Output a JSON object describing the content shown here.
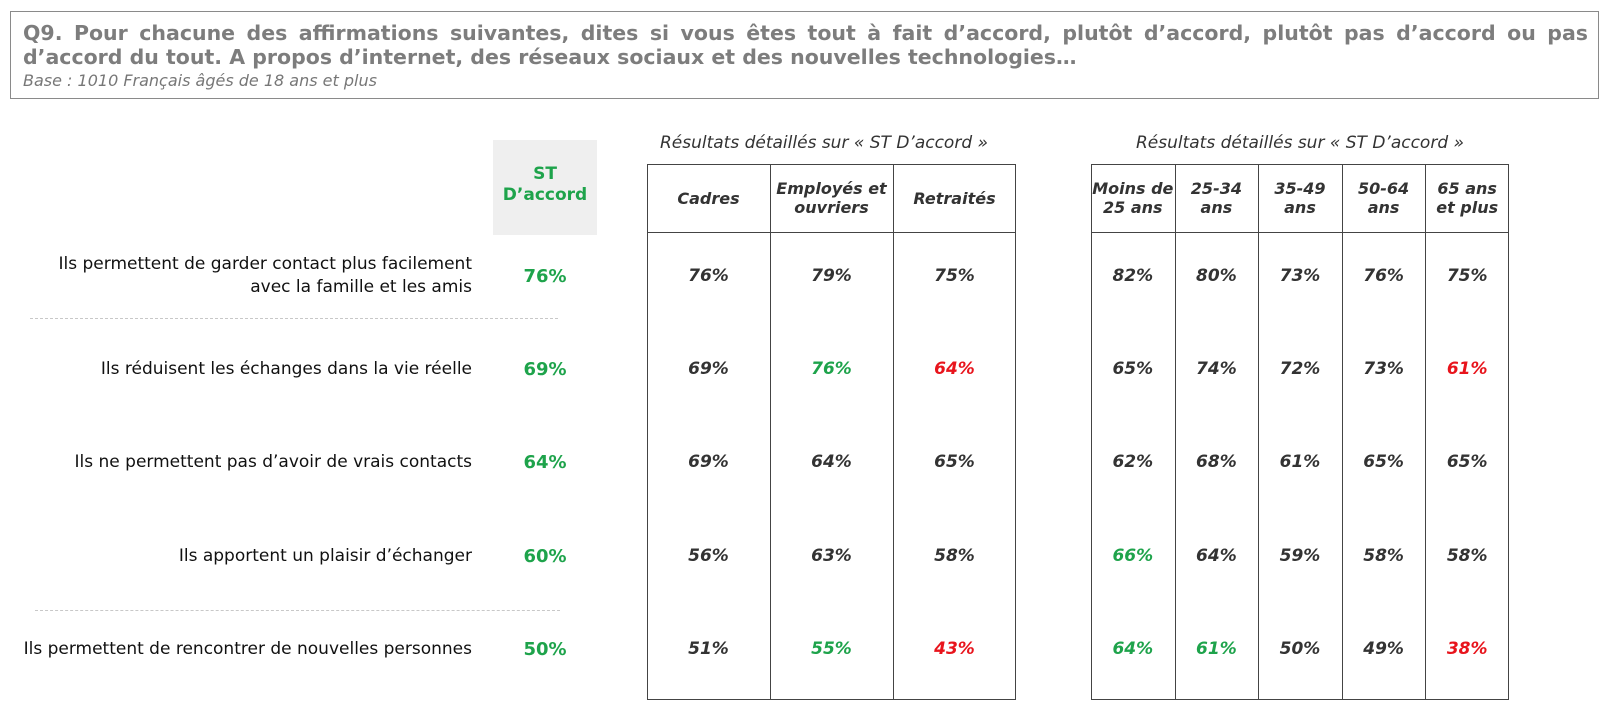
{
  "question": {
    "title": "Q9. Pour chacune des affirmations suivantes, dites si vous êtes tout à fait d’accord, plutôt d’accord, plutôt pas d’accord ou pas d’accord du tout. A propos d’internet, des réseaux sociaux et des nouvelles technologies…",
    "base": "Base : 1010 Français âgés de 18 ans et plus"
  },
  "st_label": "ST D’accord",
  "group_titles": {
    "profession": "Résultats détaillés sur « ST D’accord »",
    "age": "Résultats détaillés sur « ST D’accord »"
  },
  "colors": {
    "positive": "#1ea34b",
    "negative": "#e8141c",
    "neutral": "#333333"
  },
  "chart_data": {
    "type": "table",
    "rows": [
      "Ils permettent de garder contact plus facilement avec la famille et les amis",
      "Ils réduisent les échanges dans la vie réelle",
      "Ils ne permettent pas d’avoir de vrais contacts",
      "Ils apportent un plaisir d’échanger",
      "Ils permettent de rencontrer de nouvelles personnes"
    ],
    "st_daccord": [
      "76%",
      "69%",
      "64%",
      "60%",
      "50%"
    ],
    "groups": [
      {
        "columns": [
          "Cadres",
          "Employés et ouvriers",
          "Retraités"
        ],
        "values": [
          [
            "76%",
            "79%",
            "75%"
          ],
          [
            "69%",
            "76%",
            "64%"
          ],
          [
            "69%",
            "64%",
            "65%"
          ],
          [
            "56%",
            "63%",
            "58%"
          ],
          [
            "51%",
            "55%",
            "43%"
          ]
        ],
        "highlights": [
          [
            "n",
            "n",
            "n"
          ],
          [
            "n",
            "pos",
            "neg"
          ],
          [
            "n",
            "n",
            "n"
          ],
          [
            "n",
            "n",
            "n"
          ],
          [
            "n",
            "pos",
            "neg"
          ]
        ]
      },
      {
        "columns": [
          "Moins de 25 ans",
          "25-34 ans",
          "35-49 ans",
          "50-64 ans",
          "65 ans et plus"
        ],
        "values": [
          [
            "82%",
            "80%",
            "73%",
            "76%",
            "75%"
          ],
          [
            "65%",
            "74%",
            "72%",
            "73%",
            "61%"
          ],
          [
            "62%",
            "68%",
            "61%",
            "65%",
            "65%"
          ],
          [
            "66%",
            "64%",
            "59%",
            "58%",
            "58%"
          ],
          [
            "64%",
            "61%",
            "50%",
            "49%",
            "38%"
          ]
        ],
        "highlights": [
          [
            "n",
            "n",
            "n",
            "n",
            "n"
          ],
          [
            "n",
            "n",
            "n",
            "n",
            "neg"
          ],
          [
            "n",
            "n",
            "n",
            "n",
            "n"
          ],
          [
            "pos",
            "n",
            "n",
            "n",
            "n"
          ],
          [
            "pos",
            "pos",
            "n",
            "n",
            "neg"
          ]
        ]
      }
    ]
  }
}
